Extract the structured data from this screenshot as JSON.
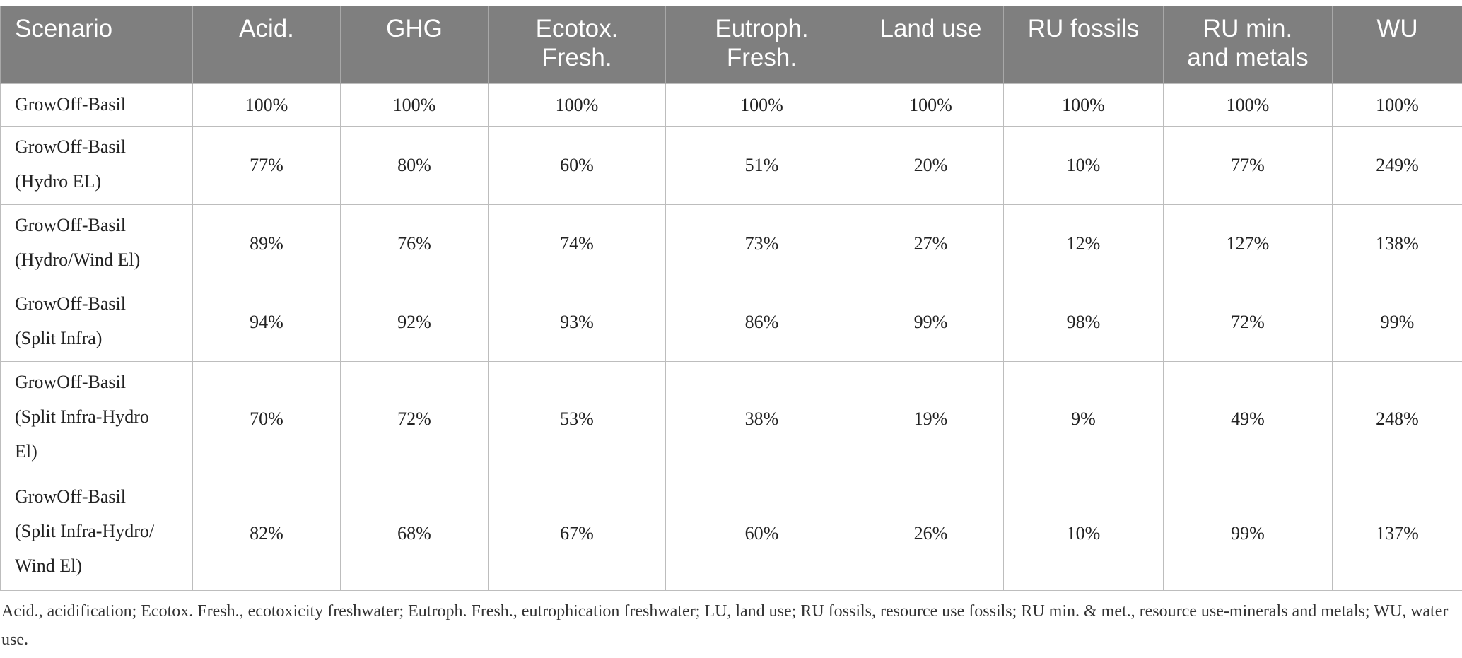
{
  "table": {
    "headers": [
      [
        "Scenario"
      ],
      [
        "Acid."
      ],
      [
        "GHG"
      ],
      [
        "Ecotox.",
        "Fresh."
      ],
      [
        "Eutroph.",
        "Fresh."
      ],
      [
        "Land use"
      ],
      [
        "RU fossils"
      ],
      [
        "RU min.",
        "and metals"
      ],
      [
        "WU"
      ]
    ],
    "rows": [
      {
        "scenario": [
          "GrowOff-Basil"
        ],
        "values": [
          "100%",
          "100%",
          "100%",
          "100%",
          "100%",
          "100%",
          "100%",
          "100%"
        ]
      },
      {
        "scenario": [
          "GrowOff-Basil",
          "(Hydro EL)"
        ],
        "values": [
          "77%",
          "80%",
          "60%",
          "51%",
          "20%",
          "10%",
          "77%",
          "249%"
        ]
      },
      {
        "scenario": [
          "GrowOff-Basil",
          "(Hydro/Wind El)"
        ],
        "values": [
          "89%",
          "76%",
          "74%",
          "73%",
          "27%",
          "12%",
          "127%",
          "138%"
        ]
      },
      {
        "scenario": [
          "GrowOff-Basil",
          "(Split Infra)"
        ],
        "values": [
          "94%",
          "92%",
          "93%",
          "86%",
          "99%",
          "98%",
          "72%",
          "99%"
        ]
      },
      {
        "scenario": [
          "GrowOff-Basil",
          "(Split Infra-Hydro",
          "El)"
        ],
        "values": [
          "70%",
          "72%",
          "53%",
          "38%",
          "19%",
          "9%",
          "49%",
          "248%"
        ]
      },
      {
        "scenario": [
          "GrowOff-Basil",
          "(Split Infra-Hydro/",
          "Wind El)"
        ],
        "values": [
          "82%",
          "68%",
          "67%",
          "60%",
          "26%",
          "10%",
          "99%",
          "137%"
        ]
      }
    ]
  },
  "footnote": "Acid., acidification; Ecotox. Fresh., ecotoxicity freshwater; Eutroph. Fresh., eutrophication freshwater; LU, land use; RU fossils, resource use fossils; RU min. & met., resource use-minerals and metals; WU, water use.",
  "colors": {
    "header_bg": "#7f7f7f",
    "header_text": "#ffffff",
    "grid": "#bdbdbd"
  }
}
